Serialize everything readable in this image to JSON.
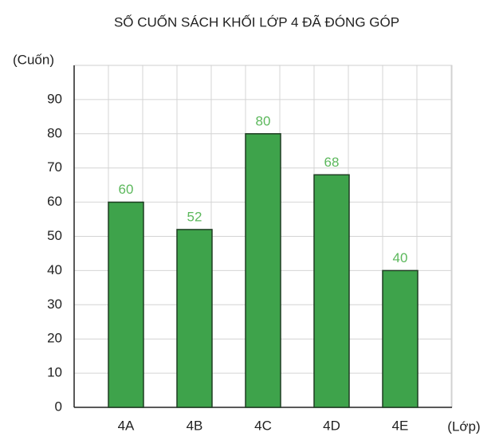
{
  "chart_data": {
    "type": "bar",
    "title": "SỐ CUỐN SÁCH KHỐI LỚP 4 ĐÃ ĐÓNG GÓP",
    "y_label": "(Cuốn)",
    "x_label": "(Lớp)",
    "categories": [
      "4A",
      "4B",
      "4C",
      "4D",
      "4E"
    ],
    "values": [
      60,
      52,
      80,
      68,
      40
    ],
    "color": "#3ea34b",
    "label_color": "#5cb85c",
    "ylim": [
      0,
      100
    ],
    "yticks": [
      0,
      10,
      20,
      30,
      40,
      50,
      60,
      70,
      80,
      90
    ],
    "grid": true
  }
}
